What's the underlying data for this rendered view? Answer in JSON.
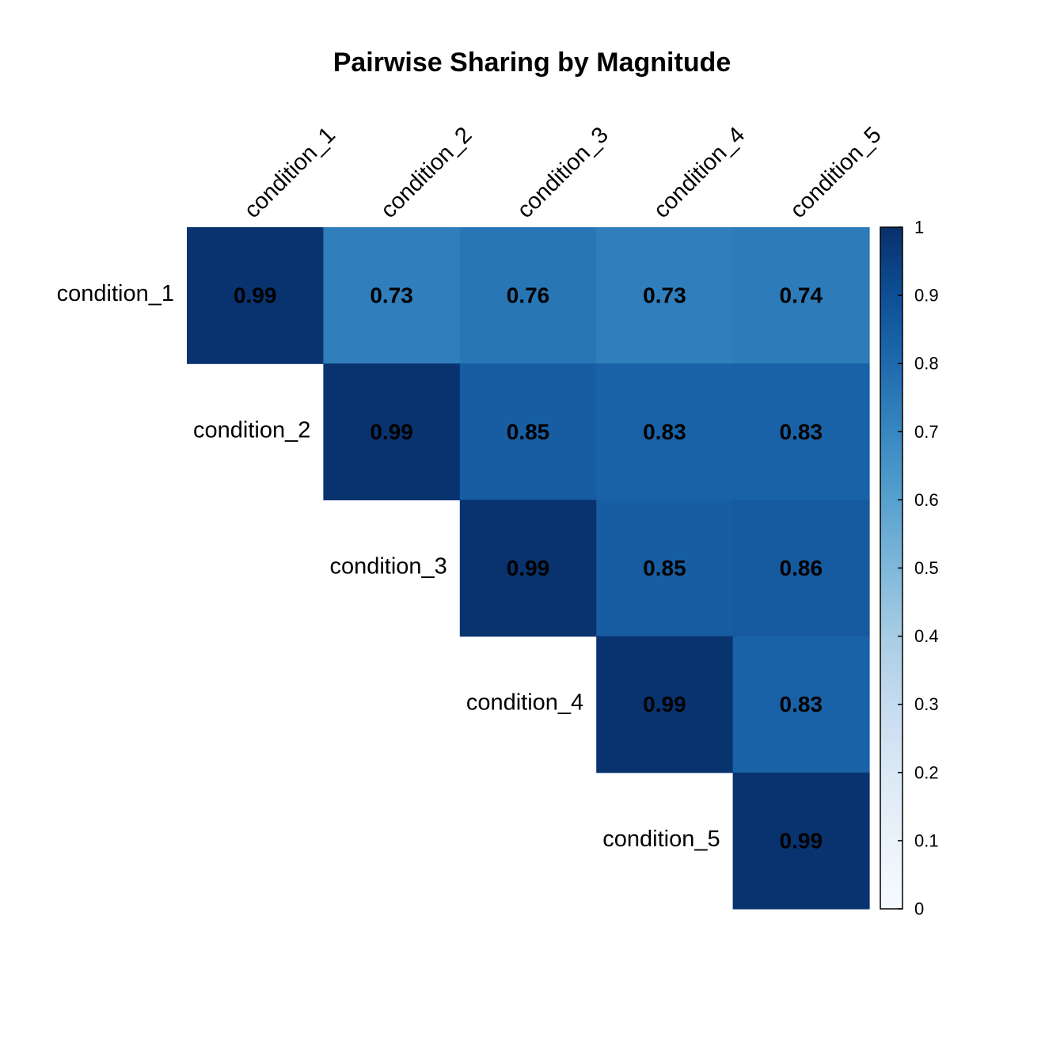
{
  "chart_data": {
    "type": "heatmap",
    "title": "Pairwise Sharing by Magnitude",
    "layout": "upper-triangle",
    "row_labels": [
      "condition_1",
      "condition_2",
      "condition_3",
      "condition_4",
      "condition_5"
    ],
    "col_labels": [
      "condition_1",
      "condition_2",
      "condition_3",
      "condition_4",
      "condition_5"
    ],
    "values": [
      [
        0.99,
        0.73,
        0.76,
        0.73,
        0.74
      ],
      [
        null,
        0.99,
        0.85,
        0.83,
        0.83
      ],
      [
        null,
        null,
        0.99,
        0.85,
        0.86
      ],
      [
        null,
        null,
        null,
        0.99,
        0.83
      ],
      [
        null,
        null,
        null,
        null,
        0.99
      ]
    ],
    "cell_labels": [
      [
        "0.99",
        "0.73",
        "0.76",
        "0.73",
        "0.74"
      ],
      [
        null,
        "0.99",
        "0.85",
        "0.83",
        "0.83"
      ],
      [
        null,
        null,
        "0.99",
        "0.85",
        "0.86"
      ],
      [
        null,
        null,
        null,
        "0.99",
        "0.83"
      ],
      [
        null,
        null,
        null,
        null,
        "0.99"
      ]
    ],
    "colorbar": {
      "range": [
        0,
        1
      ],
      "ticks": [
        "0",
        "0.1",
        "0.2",
        "0.3",
        "0.4",
        "0.5",
        "0.6",
        "0.7",
        "0.8",
        "0.9",
        "1"
      ],
      "low_color": "#ffffff",
      "high_color": "#08306b"
    }
  }
}
